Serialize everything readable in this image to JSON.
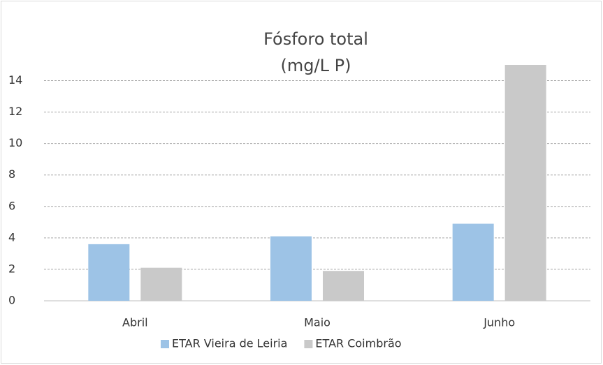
{
  "chart_data": {
    "type": "bar",
    "title": [
      "Fósforo total",
      "(mg/L P)"
    ],
    "categories": [
      "Abril",
      "Maio",
      "Junho"
    ],
    "series": [
      {
        "name": "ETAR Vieira de Leiria",
        "color": "#9dc3e6",
        "values": [
          3.6,
          4.1,
          4.9
        ]
      },
      {
        "name": "ETAR Coimbrão",
        "color": "#c9c9c9",
        "values": [
          2.1,
          1.9,
          15
        ]
      }
    ],
    "ylim": [
      0,
      15
    ],
    "yticks": [
      0,
      2,
      4,
      6,
      8,
      10,
      12,
      14
    ],
    "grid": true,
    "legend": "bottom"
  }
}
